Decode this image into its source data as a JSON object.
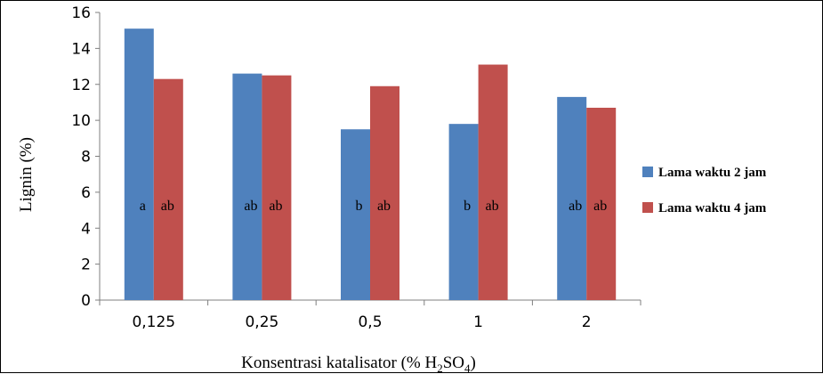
{
  "chart_data": {
    "type": "bar",
    "categories": [
      "0,125",
      "0,25",
      "0,5",
      "1",
      "2"
    ],
    "series": [
      {
        "name": "Lama waktu 2 jam",
        "color": "#4F81BD",
        "values": [
          15.1,
          12.6,
          9.5,
          9.8,
          11.3
        ]
      },
      {
        "name": "Lama waktu 4 jam",
        "color": "#C0504D",
        "values": [
          12.3,
          12.5,
          11.9,
          13.1,
          10.7
        ]
      }
    ],
    "letters": [
      [
        "a",
        "ab",
        "b",
        "b",
        "ab"
      ],
      [
        "ab",
        "ab",
        "ab",
        "ab",
        "ab"
      ]
    ],
    "letter_y_value": 5,
    "ylabel": "Lignin (%)",
    "xlabel_main": "Konsentrasi katalisator  (% H",
    "xlabel_sub1": "2",
    "xlabel_mid": "SO",
    "xlabel_sub2": "4",
    "xlabel_end": ")",
    "ylim": [
      0,
      16
    ],
    "yticks": [
      0,
      2,
      4,
      6,
      8,
      10,
      12,
      14,
      16
    ],
    "grid": false,
    "legend_position": "right"
  }
}
